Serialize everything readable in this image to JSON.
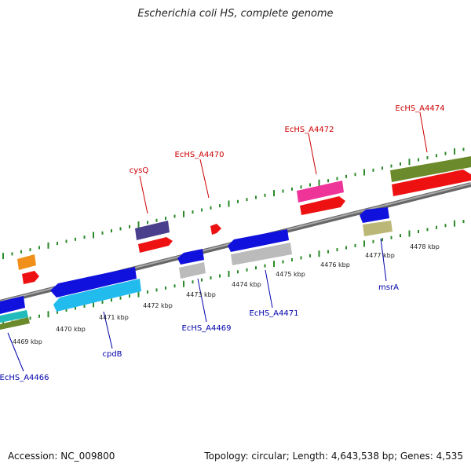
{
  "title": "Escherichia coli HS, complete genome",
  "footer": {
    "accession": "Accession: NC_009800",
    "summary": "Topology: circular; Length: 4,643,538 bp; Genes: 4,535"
  },
  "colors": {
    "backbone": "#888888",
    "tick": "#2a8a2a",
    "forward_label": "#cc0000",
    "reverse_label": "#0000aa"
  },
  "kbp_labels": [
    "4469 kbp",
    "4470 kbp",
    "4471 kbp",
    "4472 kbp",
    "4473 kbp",
    "4474 kbp",
    "4475 kbp",
    "4476 kbp",
    "4477 kbp",
    "4478 kbp"
  ],
  "forward_gene_labels": [
    "cysQ",
    "EcHS_A4470",
    "EcHS_A4472",
    "EcHS_A4474"
  ],
  "reverse_gene_labels": [
    "EcHS_A4466",
    "cpdB",
    "EcHS_A4469",
    "EcHS_A4471",
    "msrA"
  ]
}
